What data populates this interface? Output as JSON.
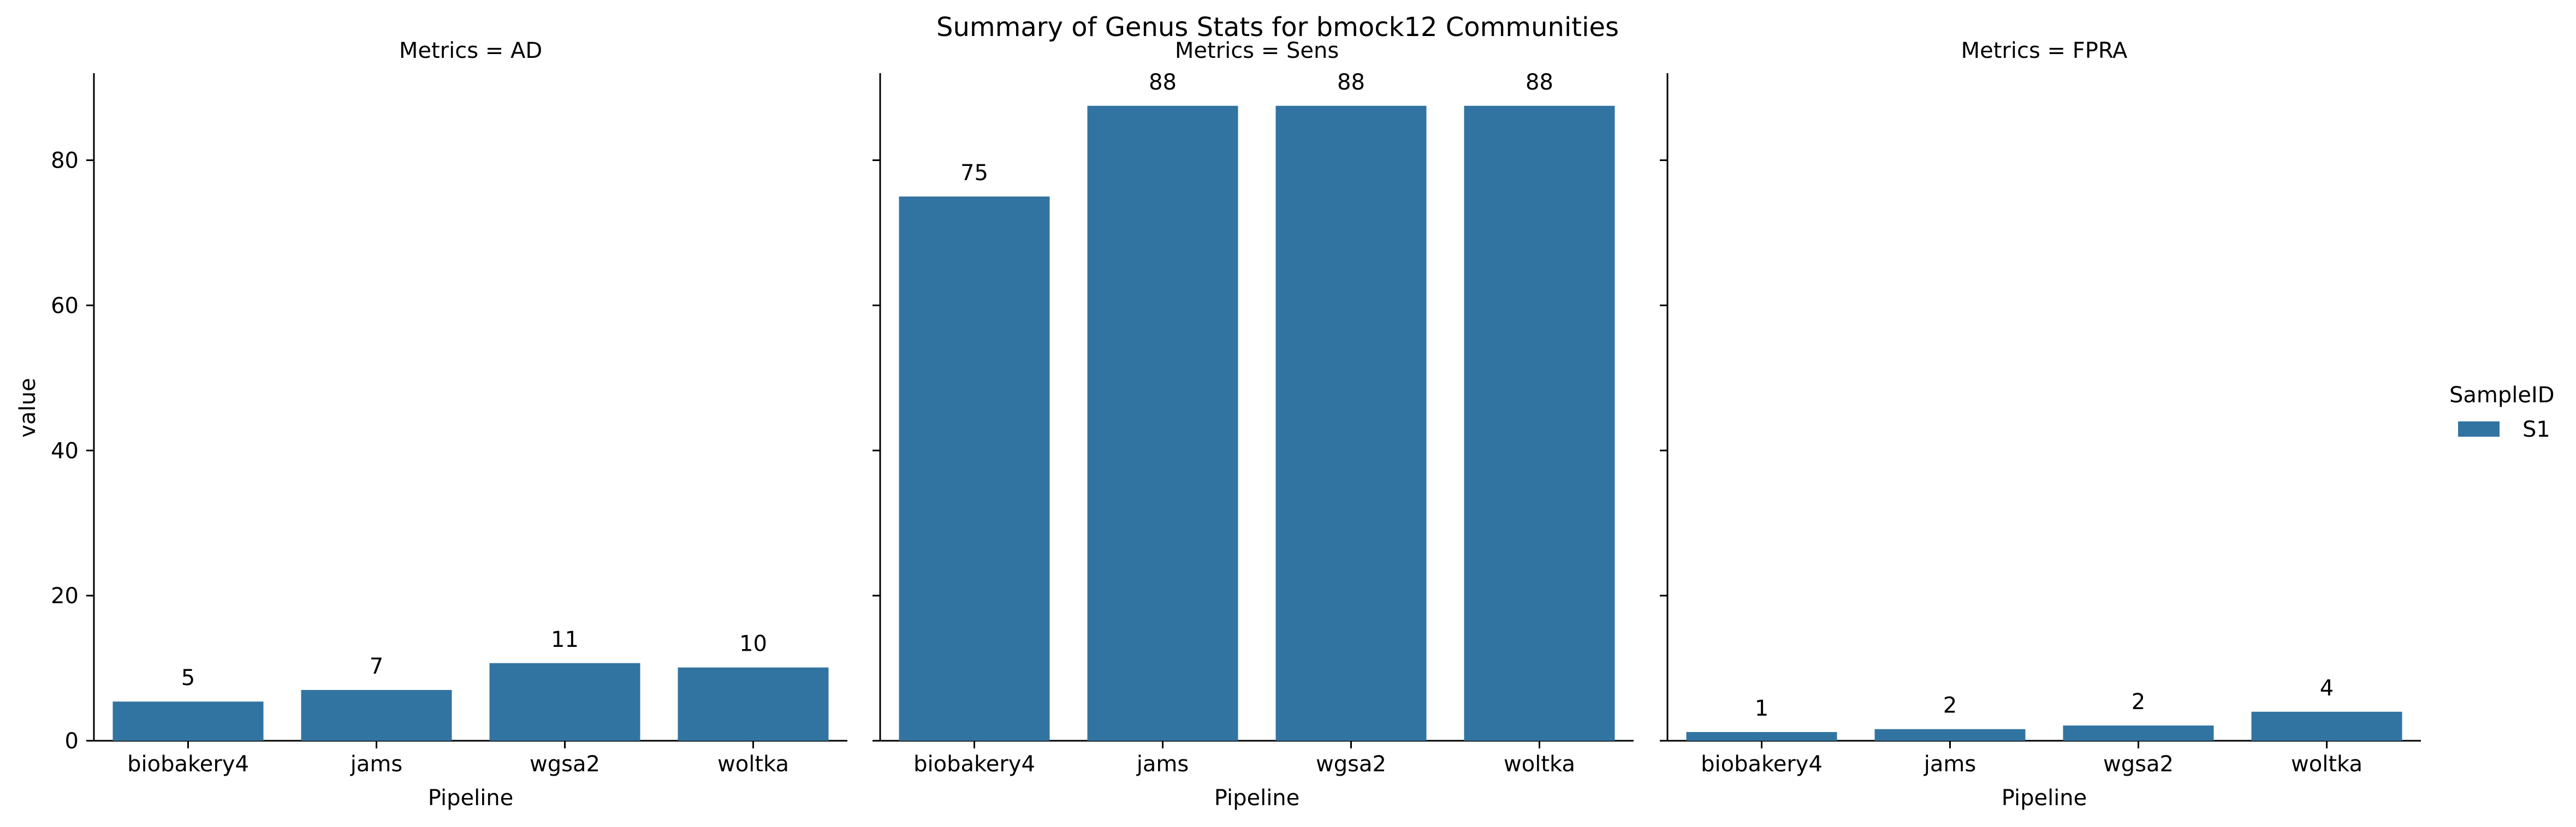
{
  "chart_data": {
    "type": "bar",
    "title": "Summary of Genus Stats for bmock12 Communities",
    "ylabel": "value",
    "ylim": [
      0,
      92
    ],
    "yticks": [
      0,
      20,
      40,
      60,
      80
    ],
    "shared_y": true,
    "grid": false,
    "legend": {
      "title": "SampleID",
      "placement": "center-right",
      "entries": [
        {
          "name": "S1",
          "color": "#3274a1"
        }
      ]
    },
    "facets": [
      {
        "title": "Metrics = AD",
        "xlabel": "Pipeline",
        "categories": [
          "biobakery4",
          "jams",
          "wgsa2",
          "woltka"
        ],
        "series": [
          {
            "name": "S1",
            "values": [
              5.4,
              7.0,
              10.7,
              10.1
            ],
            "labels": [
              "5",
              "7",
              "11",
              "10"
            ]
          }
        ]
      },
      {
        "title": "Metrics = Sens",
        "xlabel": "Pipeline",
        "categories": [
          "biobakery4",
          "jams",
          "wgsa2",
          "woltka"
        ],
        "series": [
          {
            "name": "S1",
            "values": [
              75.0,
              87.5,
              87.5,
              87.5
            ],
            "labels": [
              "75",
              "88",
              "88",
              "88"
            ]
          }
        ]
      },
      {
        "title": "Metrics = FPRA",
        "xlabel": "Pipeline",
        "categories": [
          "biobakery4",
          "jams",
          "wgsa2",
          "woltka"
        ],
        "series": [
          {
            "name": "S1",
            "values": [
              1.2,
              1.6,
              2.1,
              4.0
            ],
            "labels": [
              "1",
              "2",
              "2",
              "4"
            ]
          }
        ]
      }
    ]
  }
}
